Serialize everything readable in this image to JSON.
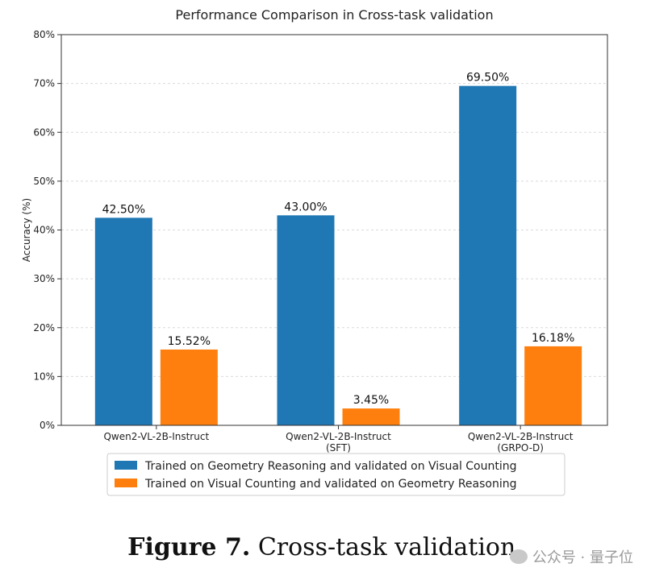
{
  "chart_data": {
    "type": "bar",
    "title": "Performance Comparison in Cross-task validation",
    "ylabel": "Accuracy (%)",
    "xlabel": "",
    "ylim": [
      0,
      80
    ],
    "yticks": [
      "0%",
      "10%",
      "20%",
      "30%",
      "40%",
      "50%",
      "60%",
      "70%",
      "80%"
    ],
    "grid": "horizontal dashed",
    "legend_position": "bottom",
    "categories": [
      [
        "Qwen2-VL-2B-Instruct"
      ],
      [
        "Qwen2-VL-2B-Instruct",
        "(SFT)"
      ],
      [
        "Qwen2-VL-2B-Instruct",
        "(GRPO-D)"
      ]
    ],
    "series": [
      {
        "name": "Trained on Geometry Reasoning and validated on Visual Counting",
        "color": "#1f77b4",
        "values": [
          42.5,
          43.0,
          69.5
        ],
        "labels": [
          "42.50%",
          "43.00%",
          "69.50%"
        ]
      },
      {
        "name": "Trained on Visual Counting and validated on Geometry Reasoning",
        "color": "#ff7f0e",
        "values": [
          15.52,
          3.45,
          16.18
        ],
        "labels": [
          "15.52%",
          "3.45%",
          "16.18%"
        ]
      }
    ]
  },
  "caption": {
    "figure_label": "Figure 7.",
    "text": "Cross-task validation."
  },
  "watermark": {
    "text": "公众号 · 量子位"
  }
}
